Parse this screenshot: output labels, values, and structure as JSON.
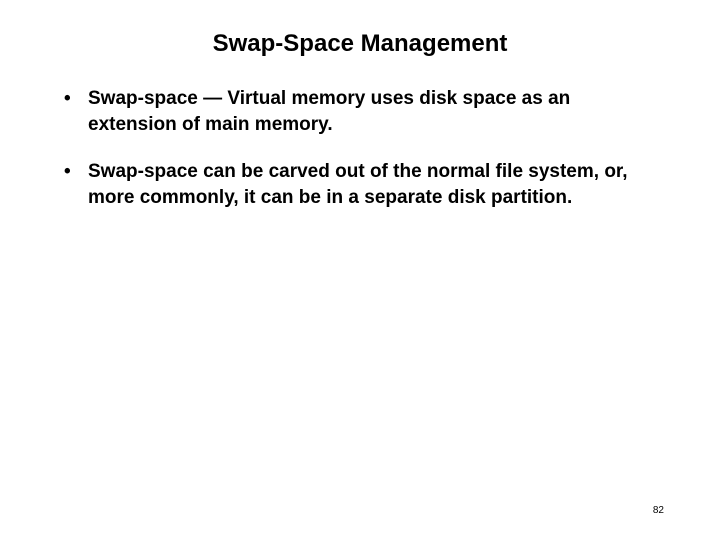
{
  "slide": {
    "title": "Swap-Space Management",
    "bullets": [
      "Swap-space — Virtual memory uses disk space as an extension of main memory.",
      "Swap-space can be carved out of the normal file system, or, more commonly, it can be in a separate disk partition."
    ],
    "page_number": "82",
    "colors": {
      "background": "#ffffff",
      "text": "#000000"
    },
    "typography": {
      "title_fontsize": 24,
      "body_fontsize": 19,
      "page_number_fontsize": 10,
      "font_family": "Arial",
      "font_weight": "bold"
    }
  }
}
